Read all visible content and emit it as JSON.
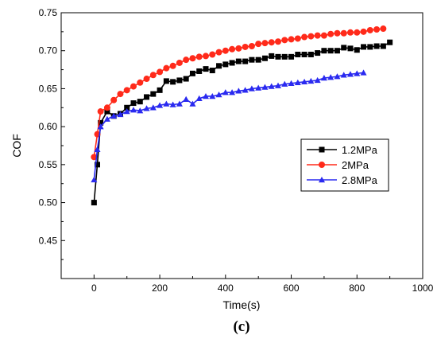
{
  "caption": "(c)",
  "chart_data": {
    "type": "line",
    "xlabel": "Time(s)",
    "ylabel": "COF",
    "xlim": [
      -100,
      1000
    ],
    "ylim": [
      0.4,
      0.75
    ],
    "xticks": [
      0,
      200,
      400,
      600,
      800,
      1000
    ],
    "yticks": [
      0.45,
      0.5,
      0.55,
      0.6,
      0.65,
      0.7,
      0.75
    ],
    "grid": false,
    "legend_position": "right",
    "series": [
      {
        "name": "1.2MPa",
        "color": "#000000",
        "marker": "square",
        "x": [
          0,
          10,
          20,
          40,
          60,
          80,
          100,
          120,
          140,
          160,
          180,
          200,
          220,
          240,
          260,
          280,
          300,
          320,
          340,
          360,
          380,
          400,
          420,
          440,
          460,
          480,
          500,
          520,
          540,
          560,
          580,
          600,
          620,
          640,
          660,
          680,
          700,
          720,
          740,
          760,
          780,
          800,
          820,
          840,
          860,
          880,
          900
        ],
        "y": [
          0.5,
          0.55,
          0.605,
          0.62,
          0.614,
          0.617,
          0.625,
          0.631,
          0.633,
          0.639,
          0.643,
          0.648,
          0.66,
          0.659,
          0.661,
          0.663,
          0.67,
          0.673,
          0.676,
          0.674,
          0.68,
          0.682,
          0.684,
          0.686,
          0.686,
          0.688,
          0.688,
          0.69,
          0.693,
          0.692,
          0.692,
          0.692,
          0.695,
          0.695,
          0.695,
          0.697,
          0.7,
          0.7,
          0.7,
          0.704,
          0.703,
          0.701,
          0.705,
          0.705,
          0.706,
          0.706,
          0.711
        ]
      },
      {
        "name": "2MPa",
        "color": "#ff2a1a",
        "marker": "circle",
        "x": [
          0,
          10,
          20,
          40,
          60,
          80,
          100,
          120,
          140,
          160,
          180,
          200,
          220,
          240,
          260,
          280,
          300,
          320,
          340,
          360,
          380,
          400,
          420,
          440,
          460,
          480,
          500,
          520,
          540,
          560,
          580,
          600,
          620,
          640,
          660,
          680,
          700,
          720,
          740,
          760,
          780,
          800,
          820,
          840,
          860,
          880
        ],
        "y": [
          0.56,
          0.59,
          0.62,
          0.625,
          0.635,
          0.643,
          0.648,
          0.653,
          0.658,
          0.663,
          0.668,
          0.672,
          0.677,
          0.68,
          0.684,
          0.688,
          0.69,
          0.692,
          0.693,
          0.695,
          0.698,
          0.7,
          0.702,
          0.703,
          0.705,
          0.706,
          0.709,
          0.71,
          0.711,
          0.712,
          0.714,
          0.715,
          0.716,
          0.718,
          0.719,
          0.72,
          0.72,
          0.722,
          0.723,
          0.723,
          0.724,
          0.724,
          0.725,
          0.727,
          0.728,
          0.729
        ]
      },
      {
        "name": "2.8MPa",
        "color": "#2a2af0",
        "marker": "triangle",
        "x": [
          0,
          10,
          20,
          40,
          60,
          80,
          100,
          120,
          140,
          160,
          180,
          200,
          220,
          240,
          260,
          280,
          300,
          320,
          340,
          360,
          380,
          400,
          420,
          440,
          460,
          480,
          500,
          520,
          540,
          560,
          580,
          600,
          620,
          640,
          660,
          680,
          700,
          720,
          740,
          760,
          780,
          800,
          820
        ],
        "y": [
          0.53,
          0.57,
          0.6,
          0.61,
          0.614,
          0.616,
          0.62,
          0.622,
          0.621,
          0.624,
          0.625,
          0.628,
          0.63,
          0.629,
          0.63,
          0.636,
          0.63,
          0.637,
          0.64,
          0.64,
          0.642,
          0.645,
          0.645,
          0.647,
          0.648,
          0.65,
          0.651,
          0.652,
          0.653,
          0.654,
          0.656,
          0.657,
          0.658,
          0.659,
          0.66,
          0.661,
          0.664,
          0.665,
          0.666,
          0.668,
          0.669,
          0.67,
          0.671
        ]
      }
    ]
  }
}
